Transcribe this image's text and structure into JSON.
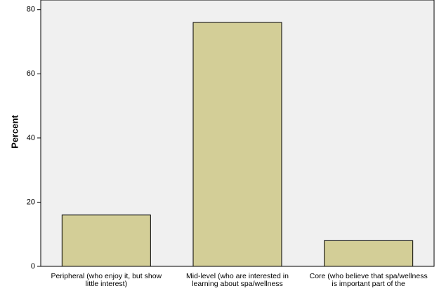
{
  "chart_data": {
    "type": "bar",
    "y_label": "Percent",
    "categories": [
      "Peripheral (who enjoy it, but show little interest)",
      "Mid-level (who are interested in learning about spa/wellness",
      "Core (who believe that spa/wellness is important part of the"
    ],
    "values": [
      16,
      76,
      8
    ],
    "color": "#d3ce97",
    "ylim": [
      0,
      83
    ],
    "yticks": [
      0,
      20,
      40,
      60,
      80
    ],
    "grid": false
  }
}
